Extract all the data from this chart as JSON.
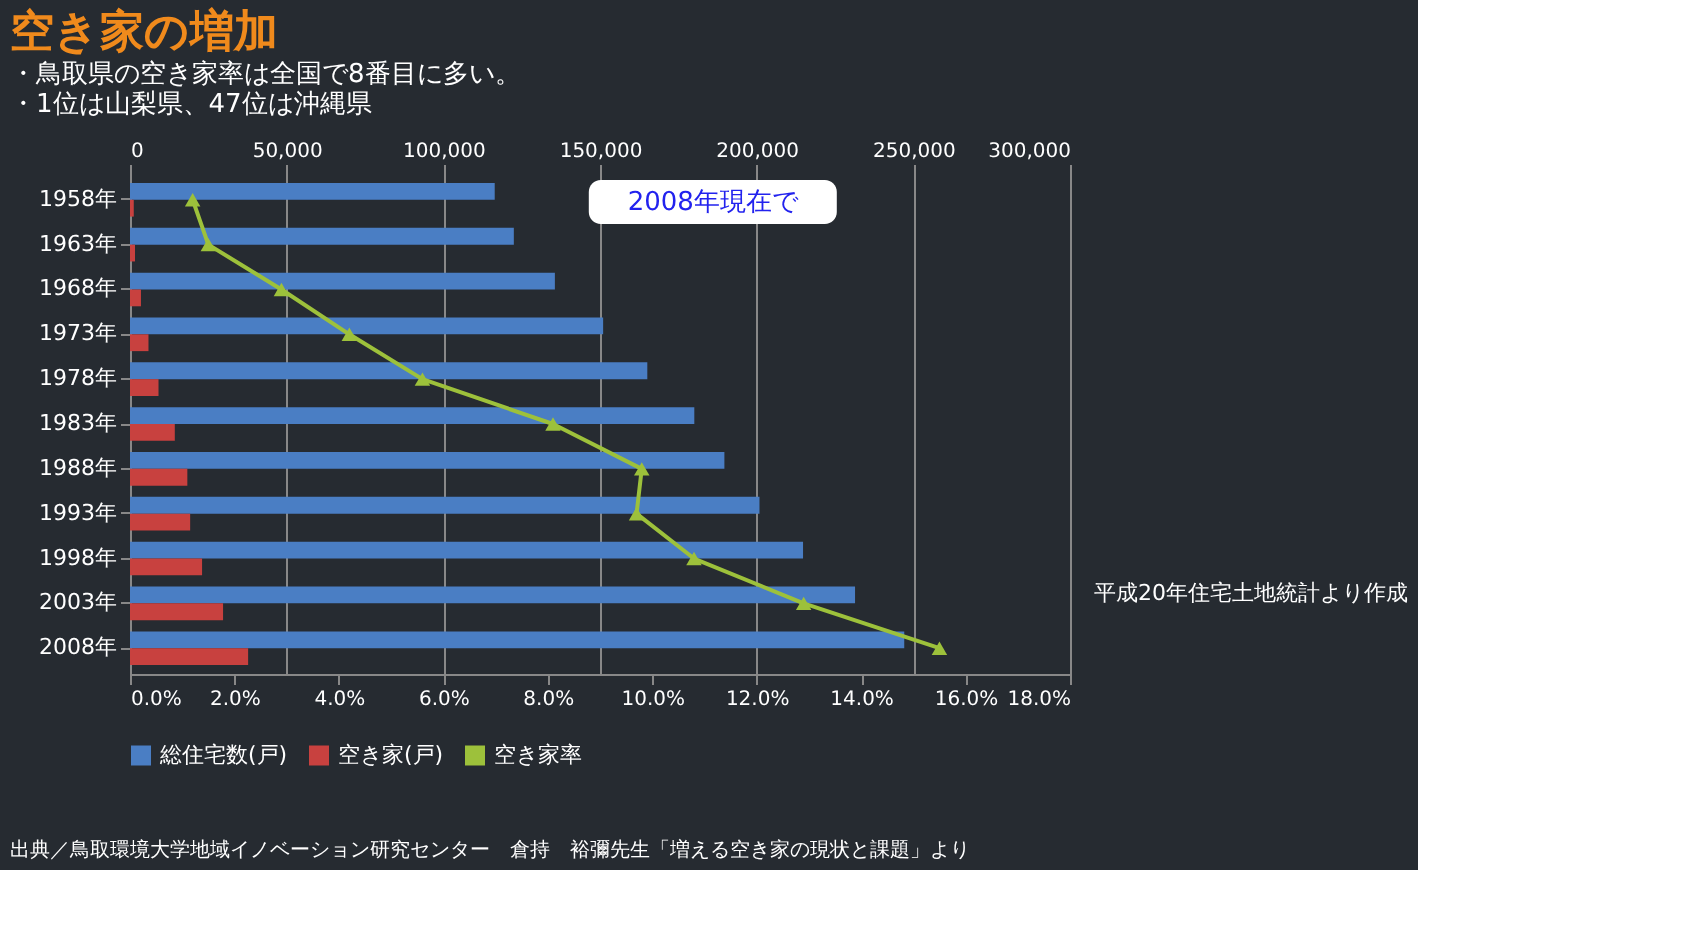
{
  "chart_data": {
    "type": "bar",
    "orientation": "horizontal",
    "title": "空き家の増加",
    "subtitle": [
      "・鳥取県の空き家率は全国で8番目に多い。",
      "・1位は山梨県、47位は沖縄県"
    ],
    "categories": [
      "1958年",
      "1963年",
      "1968年",
      "1973年",
      "1978年",
      "1983年",
      "1988年",
      "1993年",
      "1998年",
      "2003年",
      "2008年"
    ],
    "series": [
      {
        "name": "総住宅数(戸)",
        "color": "#4a7ec4",
        "values": [
          116400,
          122500,
          135600,
          151000,
          165100,
          180100,
          189700,
          200900,
          214800,
          231400,
          247100
        ]
      },
      {
        "name": "空き家(戸)",
        "color": "#c8413f",
        "values": [
          1200,
          1600,
          3500,
          5900,
          9100,
          14300,
          18300,
          19200,
          23000,
          29700,
          37700
        ]
      },
      {
        "name": "空き家率",
        "type": "line",
        "axis": "x2",
        "marker": "triangle",
        "color": "#9dc13b",
        "values": [
          1.2,
          1.5,
          2.9,
          4.2,
          5.6,
          8.1,
          9.8,
          9.7,
          10.8,
          12.9,
          15.5
        ]
      }
    ],
    "xlim": [
      0,
      300000
    ],
    "xticks": [
      0,
      {
        "value": 50000,
        "label": "50,000"
      },
      {
        "value": 100000,
        "label": "100,000"
      },
      {
        "value": 150000,
        "label": "150,000"
      },
      {
        "value": 200000,
        "label": "200,000"
      },
      {
        "value": 250000,
        "label": "250,000"
      },
      {
        "value": 300000,
        "label": "300,000"
      }
    ],
    "x2lim": [
      0,
      18
    ],
    "x2ticks": [
      {
        "value": 0,
        "label": "0.0%"
      },
      {
        "value": 2,
        "label": "2.0%"
      },
      {
        "value": 4,
        "label": "4.0%"
      },
      {
        "value": 6,
        "label": "6.0%"
      },
      {
        "value": 8,
        "label": "8.0%"
      },
      {
        "value": 10,
        "label": "10.0%"
      },
      {
        "value": 12,
        "label": "12.0%"
      },
      {
        "value": 14,
        "label": "14.0%"
      },
      {
        "value": 16,
        "label": "16.0%"
      },
      {
        "value": 18,
        "label": "18.0%"
      }
    ],
    "grid": "x",
    "legend": "bottom",
    "annotations": [
      "2008年現在で",
      "平成20年住宅土地統計より作成",
      "出典／鳥取環境大学地域イノベーション研究センター　倉持　裕彌先生「増える空き家の現状と課題」より"
    ]
  }
}
